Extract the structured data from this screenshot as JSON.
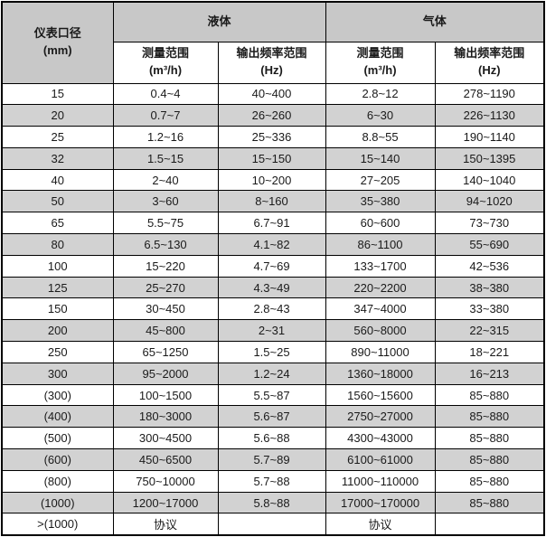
{
  "table": {
    "corner_header": {
      "line1": "仪表口径",
      "line2": "(mm)"
    },
    "groups": [
      {
        "label": "液体",
        "sub": [
          {
            "line1": "测量范围",
            "line2": "(m³/h)"
          },
          {
            "line1": "输出频率范围",
            "line2": "(Hz)"
          }
        ]
      },
      {
        "label": "气体",
        "sub": [
          {
            "line1": "测量范围",
            "line2": "(m³/h)"
          },
          {
            "line1": "输出频率范围",
            "line2": "(Hz)"
          }
        ]
      }
    ],
    "rows": [
      {
        "size": "15",
        "cells": [
          "0.4~4",
          "40~400",
          "2.8~12",
          "278~1190"
        ]
      },
      {
        "size": "20",
        "cells": [
          "0.7~7",
          "26~260",
          "6~30",
          "226~1130"
        ]
      },
      {
        "size": "25",
        "cells": [
          "1.2~16",
          "25~336",
          "8.8~55",
          "190~1140"
        ]
      },
      {
        "size": "32",
        "cells": [
          "1.5~15",
          "15~150",
          "15~140",
          "150~1395"
        ]
      },
      {
        "size": "40",
        "cells": [
          "2~40",
          "10~200",
          "27~205",
          "140~1040"
        ]
      },
      {
        "size": "50",
        "cells": [
          "3~60",
          "8~160",
          "35~380",
          "94~1020"
        ]
      },
      {
        "size": "65",
        "cells": [
          "5.5~75",
          "6.7~91",
          "60~600",
          "73~730"
        ]
      },
      {
        "size": "80",
        "cells": [
          "6.5~130",
          "4.1~82",
          "86~1100",
          "55~690"
        ]
      },
      {
        "size": "100",
        "cells": [
          "15~220",
          "4.7~69",
          "133~1700",
          "42~536"
        ]
      },
      {
        "size": "125",
        "cells": [
          "25~270",
          "4.3~49",
          "220~2200",
          "38~380"
        ]
      },
      {
        "size": "150",
        "cells": [
          "30~450",
          "2.8~43",
          "347~4000",
          "33~380"
        ]
      },
      {
        "size": "200",
        "cells": [
          "45~800",
          "2~31",
          "560~8000",
          "22~315"
        ]
      },
      {
        "size": "250",
        "cells": [
          "65~1250",
          "1.5~25",
          "890~11000",
          "18~221"
        ]
      },
      {
        "size": "300",
        "cells": [
          "95~2000",
          "1.2~24",
          "1360~18000",
          "16~213"
        ]
      },
      {
        "size": "(300)",
        "cells": [
          "100~1500",
          "5.5~87",
          "1560~15600",
          "85~880"
        ]
      },
      {
        "size": "(400)",
        "cells": [
          "180~3000",
          "5.6~87",
          "2750~27000",
          "85~880"
        ]
      },
      {
        "size": "(500)",
        "cells": [
          "300~4500",
          "5.6~88",
          "4300~43000",
          "85~880"
        ]
      },
      {
        "size": "(600)",
        "cells": [
          "450~6500",
          "5.7~89",
          "6100~61000",
          "85~880"
        ]
      },
      {
        "size": "(800)",
        "cells": [
          "750~10000",
          "5.7~88",
          "11000~110000",
          "85~880"
        ]
      },
      {
        "size": "(1000)",
        "cells": [
          "1200~17000",
          "5.8~88",
          "17000~170000",
          "85~880"
        ]
      },
      {
        "size": ">(1000)",
        "cells": [
          "协议",
          "",
          "协议",
          ""
        ]
      }
    ]
  },
  "colors": {
    "header_bg": "#c8c8c8",
    "stripe_bg": "#d2d2d2",
    "border": "#000000",
    "text": "#1a1a1a"
  }
}
